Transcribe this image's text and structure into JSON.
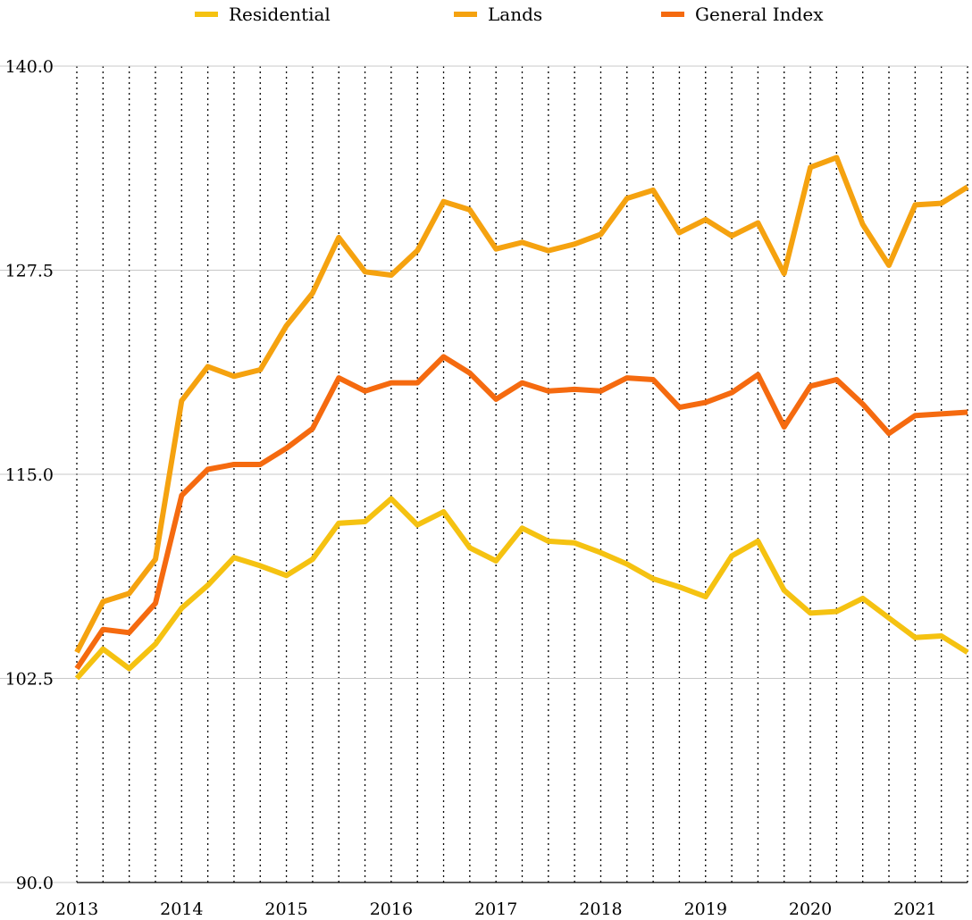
{
  "chart_data": {
    "type": "line",
    "ylim": [
      90,
      140
    ],
    "y_ticks": [
      "90.0",
      "102.5",
      "115.0",
      "127.5",
      "140.0"
    ],
    "x_tick_labels": [
      "2013",
      "2014",
      "2015",
      "2016",
      "2017",
      "2018",
      "2019",
      "2020",
      "2021"
    ],
    "legend_position": "top",
    "grid": {
      "horizontal": true,
      "vertical": "dotted"
    },
    "series": [
      {
        "name": "Residential",
        "color": "#F5C211",
        "values": [
          102.5,
          104.3,
          103.1,
          104.6,
          106.8,
          108.2,
          109.9,
          109.4,
          108.8,
          109.8,
          112.0,
          112.1,
          113.5,
          111.9,
          112.7,
          110.5,
          109.7,
          111.7,
          110.9,
          110.8,
          110.2,
          109.5,
          108.6,
          108.1,
          107.5,
          110.0,
          110.9,
          107.9,
          106.5,
          106.6,
          107.4,
          106.2,
          105.0,
          105.1,
          104.1
        ]
      },
      {
        "name": "Lands",
        "color": "#F5A20F",
        "values": [
          104.1,
          107.2,
          107.7,
          109.8,
          119.5,
          121.6,
          121.0,
          121.4,
          124.1,
          126.1,
          129.5,
          127.4,
          127.2,
          128.7,
          131.7,
          131.2,
          128.8,
          129.2,
          128.7,
          129.1,
          129.7,
          131.9,
          132.4,
          129.8,
          130.6,
          129.6,
          130.4,
          127.3,
          133.8,
          134.4,
          130.3,
          127.8,
          131.5,
          131.6,
          132.6
        ]
      },
      {
        "name": "General Index",
        "color": "#F56A0F",
        "values": [
          103.1,
          105.5,
          105.3,
          107.1,
          113.7,
          115.3,
          115.6,
          115.6,
          116.6,
          117.8,
          120.9,
          120.1,
          120.6,
          120.6,
          122.2,
          121.2,
          119.6,
          120.6,
          120.1,
          120.2,
          120.1,
          120.9,
          120.8,
          119.1,
          119.4,
          120.0,
          121.1,
          117.9,
          120.4,
          120.8,
          119.3,
          117.5,
          118.6,
          118.7,
          118.8
        ]
      }
    ]
  }
}
